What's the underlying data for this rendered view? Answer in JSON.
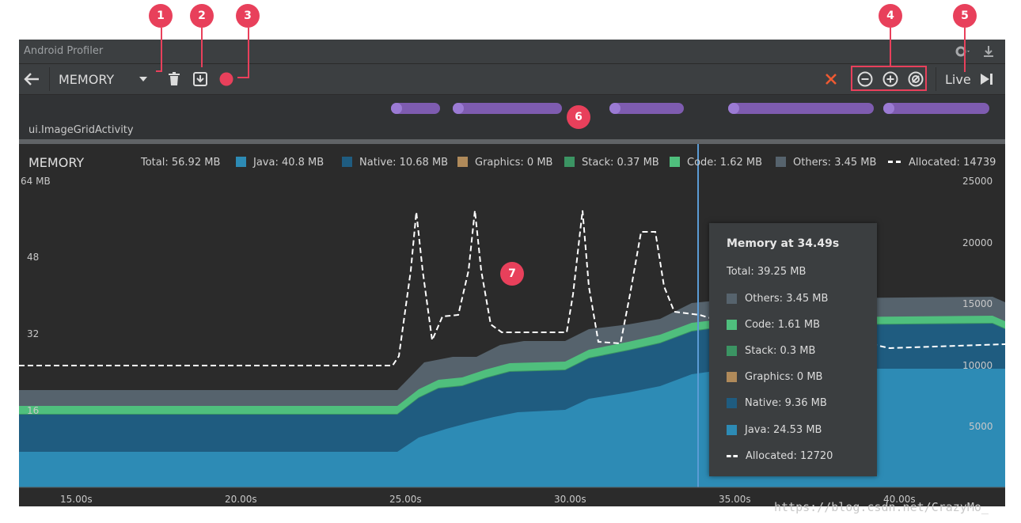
{
  "window_title": "Android Profiler",
  "toolbar": {
    "profiler_select": "MEMORY",
    "live_label": "Live"
  },
  "icons": {
    "back": "arrow-left-icon",
    "dropdown": "chevron-down-icon",
    "trash": "trash-icon",
    "dump": "download-icon",
    "record": "record-icon",
    "close": "close-icon",
    "zoom_out": "zoom-out-icon",
    "zoom_in": "zoom-in-icon",
    "reset_zoom": "reset-zoom-icon",
    "skip_live": "skip-to-end-icon",
    "settings": "gear-icon",
    "minimize": "minimize-icon"
  },
  "events": {
    "activity": "ui.ImageGridActivity"
  },
  "legend": {
    "title": "MEMORY",
    "total": "Total: 56.92 MB",
    "java": "Java:  40.8 MB",
    "native": "Native: 10.68 MB",
    "graphics": "Graphics: 0 MB",
    "stack": "Stack: 0.37 MB",
    "code": "Code: 1.62 MB",
    "others": "Others: 3.45 MB",
    "allocated": "Allocated: 14739"
  },
  "colors": {
    "java": "#2d8bb5",
    "native": "#1f5c80",
    "graphics": "#b08a5a",
    "stack": "#3b9463",
    "code": "#4fbf7d",
    "others": "#56636d",
    "allocated": "#ffffff",
    "event_pill": "#7e5cb0",
    "callout": "#e8405b",
    "time_cursor": "#5b9bd5"
  },
  "axes": {
    "left": [
      "64 MB",
      "48",
      "32",
      "16"
    ],
    "right": [
      "25000",
      "20000",
      "15000",
      "10000",
      "5000"
    ],
    "time": [
      "15.00s",
      "20.00s",
      "25.00s",
      "30.00s",
      "35.00s",
      "40.00s"
    ]
  },
  "tooltip": {
    "title": "Memory at 34.49s",
    "total": "Total: 39.25 MB",
    "rows": [
      {
        "label": "Others: 3.45 MB"
      },
      {
        "label": "Code: 1.61 MB"
      },
      {
        "label": "Stack: 0.3 MB"
      },
      {
        "label": "Graphics: 0 MB"
      },
      {
        "label": "Native: 9.36 MB"
      },
      {
        "label": "Java: 24.53 MB"
      },
      {
        "label": "Allocated: 12720"
      }
    ]
  },
  "callouts": [
    "1",
    "2",
    "3",
    "4",
    "5",
    "6",
    "7"
  ],
  "watermark": "https://blog.csdn.net/CrazyMo_"
}
